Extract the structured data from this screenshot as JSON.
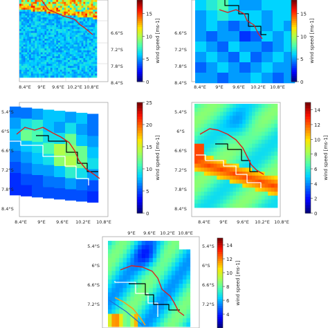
{
  "colormap": [
    "#00007f",
    "#0000ff",
    "#0063ff",
    "#00d4ff",
    "#4effad",
    "#adff4e",
    "#ffe500",
    "#ff7b00",
    "#ff1100",
    "#7f0000"
  ],
  "line_colors": {
    "coastline": "#dd1c1c",
    "boundary": "#000000",
    "model_boundary": "#ffffff"
  },
  "chart_data": [
    {
      "type": "heatmap",
      "panel": "top-left",
      "cbar": {
        "label": "wind speed [ms-1]",
        "ticks": [
          "0",
          "5",
          "10",
          "15"
        ],
        "vmin": 0,
        "vmax": 18
      },
      "lat_ticks": [
        "6.6°S",
        "7.2°S",
        "7.8°S",
        "8.4°S"
      ],
      "lon_ticks": [
        "8.4°E",
        "9°E",
        "9.6°E",
        "10.2°E",
        "10.8°E"
      ]
    },
    {
      "type": "heatmap",
      "panel": "top-right",
      "cbar": {
        "label": "wind speed [ms-1]",
        "ticks": [
          "0",
          "5",
          "10",
          "15"
        ],
        "vmin": 0,
        "vmax": 18
      },
      "lat_ticks": [
        "6.6°S",
        "7.2°S",
        "7.8°S",
        "8.4°S"
      ],
      "lon_ticks": [
        "8.4°E",
        "9°E",
        "9.6°E",
        "10.2°E",
        "10.8°E"
      ]
    },
    {
      "type": "heatmap",
      "panel": "middle-left",
      "cbar": {
        "label": "wind speed [ms-1]",
        "ticks": [
          "0",
          "5",
          "10",
          "15",
          "20",
          "25"
        ],
        "vmin": 0,
        "vmax": 25
      },
      "lat_ticks": [
        "5.4°S",
        "6°S",
        "6.6°S",
        "7.2°S",
        "7.8°S",
        "8.4°S"
      ],
      "lon_ticks": [
        "8.4°E",
        "9°E",
        "9.6°E",
        "10.2°E",
        "10.8°E"
      ],
      "grid": [
        [
          6,
          6,
          7,
          8,
          8,
          7,
          8,
          6
        ],
        [
          7,
          9,
          10,
          8,
          7,
          9,
          7,
          6
        ],
        [
          8,
          12,
          11,
          9,
          9,
          12,
          8,
          7
        ],
        [
          7,
          8,
          9,
          11,
          14,
          13,
          12,
          8
        ],
        [
          6,
          7,
          8,
          9,
          13,
          14,
          12,
          9
        ],
        [
          5,
          6,
          7,
          7,
          8,
          10,
          9,
          7
        ],
        [
          4,
          5,
          5,
          6,
          6,
          7,
          6,
          5
        ],
        [
          4,
          4,
          5,
          5,
          5,
          5,
          5,
          4
        ]
      ]
    },
    {
      "type": "heatmap",
      "panel": "middle-right",
      "cbar": {
        "label": "wind speed [ms-1]",
        "ticks": [
          "0",
          "2",
          "4",
          "6",
          "8",
          "10",
          "12",
          "14"
        ],
        "vmin": 0,
        "vmax": 15
      },
      "lat_ticks": [
        "5.4°S",
        "6°S",
        "6.6°S",
        "7.2°S",
        "7.8°S",
        "8.4°S"
      ],
      "lon_ticks": [
        "8.4°E",
        "9°E",
        "9.6°E",
        "10.2°E",
        "10.8°E"
      ]
    },
    {
      "type": "heatmap",
      "panel": "bottom",
      "cbar": {
        "label": "wind speed [ms-1]",
        "ticks": [
          "4",
          "6",
          "8",
          "10",
          "12",
          "14"
        ],
        "vmin": 2,
        "vmax": 15
      },
      "lat_ticks_left": [
        "5.4°S",
        "6°S",
        "6.6°S",
        "7.2°S"
      ],
      "lat_ticks_right": [
        "5.4°S",
        "6°S",
        "6.6°S",
        "7.2°S"
      ],
      "lon_ticks": [
        "9°E",
        "9.6°E",
        "10.2°E",
        "10.8°E"
      ]
    }
  ]
}
